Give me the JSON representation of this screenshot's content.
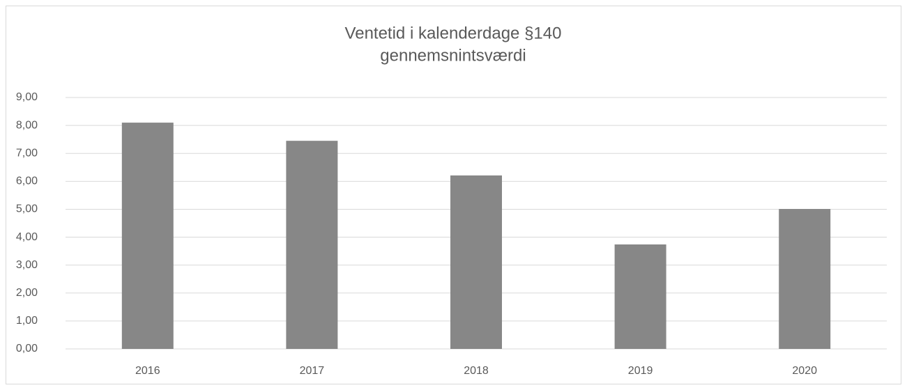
{
  "chart_data": {
    "type": "bar",
    "title": "Ventetid i kalenderdage §140",
    "subtitle": "gennemsnintsværdi",
    "categories": [
      "2016",
      "2017",
      "2018",
      "2019",
      "2020"
    ],
    "values": [
      8.1,
      7.45,
      6.21,
      3.74,
      5.01
    ],
    "color": "#878787",
    "ylim": [
      0,
      9
    ],
    "yticks": [
      {
        "value": 0,
        "label": "0,00"
      },
      {
        "value": 1,
        "label": "1,00"
      },
      {
        "value": 2,
        "label": "2,00"
      },
      {
        "value": 3,
        "label": "3,00"
      },
      {
        "value": 4,
        "label": "4,00"
      },
      {
        "value": 5,
        "label": "5,00"
      },
      {
        "value": 6,
        "label": "6,00"
      },
      {
        "value": 7,
        "label": "7,00"
      },
      {
        "value": 8,
        "label": "8,00"
      },
      {
        "value": 9,
        "label": "9,00"
      }
    ],
    "grid": true
  }
}
